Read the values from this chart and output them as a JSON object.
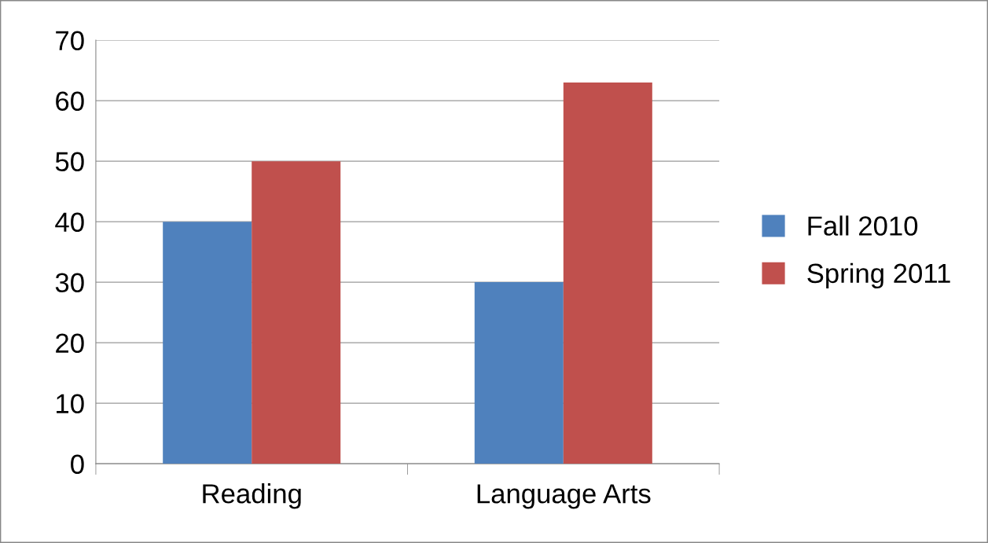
{
  "chart_data": {
    "type": "bar",
    "categories": [
      "Reading",
      "Language Arts"
    ],
    "series": [
      {
        "name": "Fall 2010",
        "color": "#4f81bd",
        "values": [
          40,
          30
        ]
      },
      {
        "name": "Spring 2011",
        "color": "#c0504d",
        "values": [
          50,
          63
        ]
      }
    ],
    "ylim": [
      0,
      70
    ],
    "yticks": [
      0,
      10,
      20,
      30,
      40,
      50,
      60,
      70
    ],
    "grid": "y",
    "legend": "right"
  }
}
